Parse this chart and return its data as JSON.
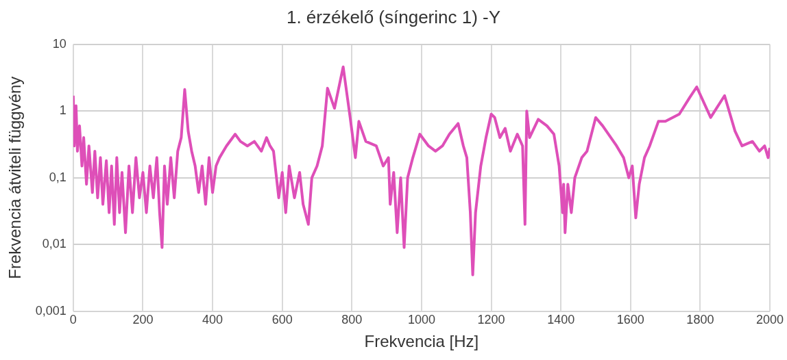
{
  "chart_data": {
    "type": "line",
    "title": "1. érzékelő (síngerinc 1) -Y",
    "xlabel": "Frekvencia [Hz]",
    "ylabel": "Frekvencia átviteli függvény",
    "log": "y",
    "grid": true,
    "legend": false,
    "marker": "none",
    "line_style": "solid",
    "xlim": [
      0,
      2000
    ],
    "xticks": [
      0,
      200,
      400,
      600,
      800,
      1000,
      1200,
      1400,
      1600,
      1800,
      2000
    ],
    "ylim": [
      0.001,
      10
    ],
    "yticks": [
      {
        "value": 0.001,
        "label": "0,001"
      },
      {
        "value": 0.01,
        "label": "0,01"
      },
      {
        "value": 0.1,
        "label": "0,1"
      },
      {
        "value": 1,
        "label": "1"
      },
      {
        "value": 10,
        "label": "10"
      }
    ],
    "series": [
      {
        "color": "#de4fb8",
        "x": [
          0,
          3,
          8,
          12,
          18,
          25,
          30,
          38,
          45,
          55,
          62,
          70,
          78,
          85,
          95,
          103,
          110,
          118,
          125,
          133,
          140,
          150,
          160,
          170,
          180,
          190,
          200,
          210,
          220,
          230,
          240,
          248,
          255,
          262,
          270,
          280,
          290,
          300,
          310,
          320,
          330,
          340,
          350,
          360,
          370,
          380,
          390,
          400,
          410,
          420,
          440,
          465,
          480,
          500,
          520,
          540,
          555,
          565,
          575,
          590,
          600,
          610,
          620,
          635,
          650,
          660,
          675,
          685,
          700,
          715,
          730,
          750,
          775,
          795,
          810,
          820,
          840,
          870,
          890,
          905,
          910,
          920,
          930,
          940,
          950,
          960,
          975,
          995,
          1020,
          1040,
          1060,
          1080,
          1105,
          1120,
          1130,
          1140,
          1147,
          1155,
          1170,
          1185,
          1200,
          1210,
          1225,
          1240,
          1255,
          1275,
          1290,
          1297,
          1302,
          1310,
          1335,
          1360,
          1380,
          1395,
          1405,
          1408,
          1412,
          1420,
          1430,
          1440,
          1460,
          1475,
          1500,
          1520,
          1560,
          1580,
          1595,
          1605,
          1615,
          1625,
          1640,
          1655,
          1680,
          1700,
          1740,
          1770,
          1790,
          1830,
          1870,
          1900,
          1920,
          1950,
          1970,
          1985,
          1995,
          2000
        ],
        "values": [
          1.7,
          0.3,
          1.2,
          0.25,
          0.6,
          0.15,
          0.4,
          0.08,
          0.3,
          0.06,
          0.25,
          0.05,
          0.2,
          0.04,
          0.18,
          0.03,
          0.15,
          0.02,
          0.2,
          0.03,
          0.12,
          0.015,
          0.15,
          0.03,
          0.2,
          0.05,
          0.12,
          0.03,
          0.15,
          0.05,
          0.2,
          0.03,
          0.009,
          0.15,
          0.04,
          0.2,
          0.05,
          0.25,
          0.4,
          2.1,
          0.5,
          0.25,
          0.15,
          0.06,
          0.15,
          0.04,
          0.2,
          0.06,
          0.15,
          0.2,
          0.3,
          0.45,
          0.35,
          0.3,
          0.35,
          0.25,
          0.4,
          0.3,
          0.25,
          0.05,
          0.12,
          0.03,
          0.15,
          0.05,
          0.12,
          0.04,
          0.02,
          0.1,
          0.15,
          0.3,
          2.2,
          1.1,
          4.6,
          0.8,
          0.2,
          0.7,
          0.35,
          0.3,
          0.15,
          0.2,
          0.04,
          0.12,
          0.015,
          0.1,
          0.009,
          0.1,
          0.2,
          0.45,
          0.3,
          0.25,
          0.3,
          0.45,
          0.65,
          0.3,
          0.2,
          0.03,
          0.0035,
          0.03,
          0.15,
          0.4,
          0.9,
          0.8,
          0.4,
          0.55,
          0.25,
          0.45,
          0.3,
          0.02,
          1.0,
          0.4,
          0.75,
          0.6,
          0.45,
          0.15,
          0.03,
          0.08,
          0.015,
          0.08,
          0.03,
          0.1,
          0.2,
          0.25,
          0.8,
          0.6,
          0.3,
          0.2,
          0.1,
          0.15,
          0.025,
          0.08,
          0.2,
          0.3,
          0.7,
          0.7,
          0.9,
          1.6,
          2.3,
          0.8,
          1.7,
          0.5,
          0.3,
          0.35,
          0.25,
          0.3,
          0.2,
          0.28
        ]
      }
    ]
  }
}
